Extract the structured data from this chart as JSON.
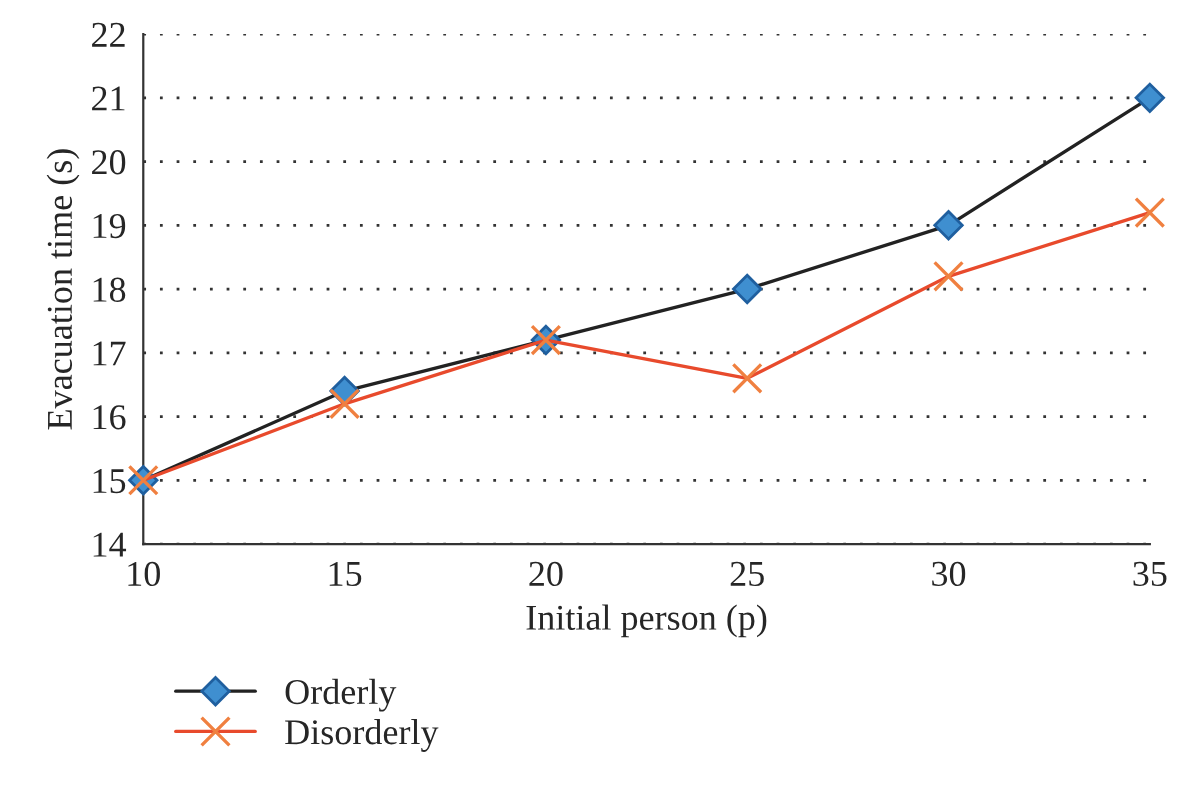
{
  "chart_data": {
    "type": "line",
    "xlabel": "Initial person (p)",
    "ylabel": "Evacuation time (s)",
    "x": [
      10,
      15,
      20,
      25,
      30,
      35
    ],
    "series": [
      {
        "name": "Orderly",
        "color": "#3f8fd0",
        "marker": "diamond",
        "values": [
          15,
          16.4,
          17.2,
          18,
          19,
          21
        ]
      },
      {
        "name": "Disorderly",
        "color": "#f08040",
        "marker": "cross",
        "values": [
          15,
          16.2,
          17.2,
          16.6,
          18.2,
          19.2
        ]
      }
    ],
    "xlim": [
      10,
      35
    ],
    "xticks": [
      10,
      15,
      20,
      25,
      30,
      35
    ],
    "ylim": [
      14,
      22
    ],
    "yticks": [
      14,
      15,
      16,
      17,
      18,
      19,
      20,
      21,
      22
    ],
    "grid": "y",
    "legend": "bottom left",
    "line_style": "solid"
  }
}
